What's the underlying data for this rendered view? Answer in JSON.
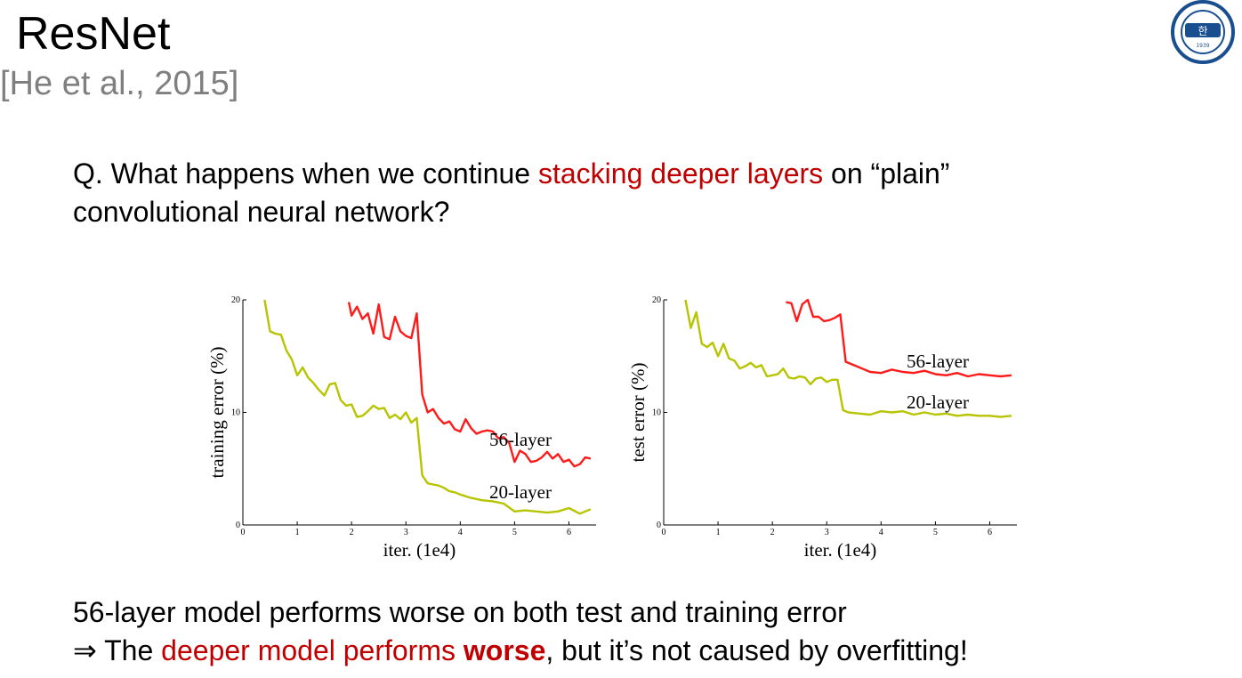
{
  "slide": {
    "title": "ResNet",
    "subtitle": "[He et al., 2015]",
    "question": {
      "prefix": "Q. What happens when we continue ",
      "highlight": "stacking deeper layers",
      "suffix_line1": " on  “plain”",
      "line2": "convolutional neural network?"
    },
    "conclusion": {
      "line1": "56-layer model performs worse on both test and training error",
      "arrow": "⇒",
      "line2_pre": " The ",
      "line2_highlight": "deeper model performs ",
      "line2_bold": "worse",
      "line2_post": ", but it’s not caused by overfitting!"
    }
  },
  "colors": {
    "highlight_red": "#c00000",
    "series_56_layer": "#ff1a1a",
    "series_20_layer": "#b7c400",
    "logo_blue": "#1a4f8f"
  },
  "logo": {
    "icon": "university-seal-logo",
    "text": "HANYANG UNIVERSITY 1939",
    "glyph": "한"
  },
  "chart_data": [
    {
      "type": "line",
      "xlabel": "iter. (1e4)",
      "ylabel": "training error (%)",
      "xlim": [
        0,
        6.5
      ],
      "ylim": [
        0,
        20
      ],
      "xticks": [
        0,
        1,
        2,
        3,
        4,
        5,
        6
      ],
      "yticks": [
        0,
        10,
        20
      ],
      "series": [
        {
          "name": "56-layer",
          "x": [
            1.95,
            2.0,
            2.1,
            2.2,
            2.3,
            2.4,
            2.5,
            2.6,
            2.7,
            2.8,
            2.9,
            3.0,
            3.1,
            3.2,
            3.3,
            3.4,
            3.5,
            3.6,
            3.7,
            3.8,
            3.9,
            4.0,
            4.1,
            4.2,
            4.3,
            4.4,
            4.5,
            4.6,
            4.7,
            4.8,
            4.9,
            5.0,
            5.1,
            5.2,
            5.3,
            5.4,
            5.5,
            5.6,
            5.7,
            5.8,
            5.9,
            6.0,
            6.1,
            6.2,
            6.3,
            6.4
          ],
          "y": [
            19.8,
            18.6,
            19.4,
            18.3,
            18.8,
            17.0,
            19.6,
            16.7,
            16.5,
            18.5,
            17.2,
            16.8,
            16.6,
            18.8,
            11.6,
            10.0,
            10.3,
            9.5,
            9.0,
            9.2,
            8.5,
            8.3,
            9.4,
            8.6,
            8.1,
            8.3,
            8.4,
            8.3,
            7.7,
            7.8,
            7.3,
            5.6,
            6.6,
            6.3,
            5.6,
            5.7,
            6.0,
            6.5,
            5.9,
            6.3,
            5.6,
            5.8,
            5.2,
            5.4,
            6.0,
            5.9
          ]
        },
        {
          "name": "20-layer",
          "x": [
            0.4,
            0.5,
            0.6,
            0.7,
            0.8,
            0.9,
            1.0,
            1.1,
            1.2,
            1.3,
            1.4,
            1.5,
            1.6,
            1.7,
            1.8,
            1.9,
            2.0,
            2.1,
            2.2,
            2.3,
            2.4,
            2.5,
            2.6,
            2.7,
            2.8,
            2.9,
            3.0,
            3.1,
            3.2,
            3.3,
            3.4,
            3.5,
            3.6,
            3.7,
            3.8,
            3.9,
            4.0,
            4.2,
            4.4,
            4.6,
            4.8,
            5.0,
            5.2,
            5.4,
            5.6,
            5.8,
            6.0,
            6.2,
            6.4
          ],
          "y": [
            20.0,
            17.2,
            17.0,
            16.9,
            15.5,
            14.7,
            13.3,
            14.0,
            13.1,
            12.6,
            12.0,
            11.5,
            12.5,
            12.6,
            11.1,
            10.6,
            10.7,
            9.6,
            9.7,
            10.1,
            10.6,
            10.3,
            10.4,
            9.5,
            9.8,
            9.4,
            10.0,
            9.1,
            9.5,
            4.4,
            3.7,
            3.6,
            3.5,
            3.3,
            3.0,
            2.9,
            2.7,
            2.4,
            2.2,
            2.1,
            1.9,
            1.2,
            1.3,
            1.2,
            1.1,
            1.2,
            1.5,
            1.0,
            1.4
          ]
        }
      ]
    },
    {
      "type": "line",
      "xlabel": "iter. (1e4)",
      "ylabel": "test error (%)",
      "xlim": [
        0,
        6.5
      ],
      "ylim": [
        0,
        20
      ],
      "xticks": [
        0,
        1,
        2,
        3,
        4,
        5,
        6
      ],
      "yticks": [
        0,
        10,
        20
      ],
      "series": [
        {
          "name": "56-layer",
          "x": [
            2.25,
            2.35,
            2.45,
            2.55,
            2.65,
            2.75,
            2.85,
            2.95,
            3.05,
            3.15,
            3.25,
            3.35,
            3.5,
            3.65,
            3.8,
            4.0,
            4.2,
            4.4,
            4.6,
            4.8,
            5.0,
            5.2,
            5.4,
            5.6,
            5.8,
            6.0,
            6.2,
            6.4
          ],
          "y": [
            19.8,
            19.7,
            18.1,
            19.6,
            20.0,
            18.5,
            18.5,
            18.1,
            18.2,
            18.4,
            18.7,
            14.5,
            14.2,
            13.9,
            13.6,
            13.5,
            13.8,
            13.6,
            13.5,
            13.7,
            13.4,
            13.3,
            13.5,
            13.2,
            13.4,
            13.3,
            13.2,
            13.3
          ]
        },
        {
          "name": "20-layer",
          "x": [
            0.4,
            0.5,
            0.6,
            0.7,
            0.8,
            0.9,
            1.0,
            1.1,
            1.2,
            1.3,
            1.4,
            1.5,
            1.6,
            1.7,
            1.8,
            1.9,
            2.0,
            2.1,
            2.2,
            2.3,
            2.4,
            2.5,
            2.6,
            2.7,
            2.8,
            2.9,
            3.0,
            3.1,
            3.2,
            3.3,
            3.4,
            3.6,
            3.8,
            4.0,
            4.2,
            4.4,
            4.6,
            4.8,
            5.0,
            5.2,
            5.4,
            5.6,
            5.8,
            6.0,
            6.2,
            6.4
          ],
          "y": [
            20.0,
            17.5,
            18.9,
            16.1,
            15.8,
            16.2,
            15.0,
            16.1,
            14.8,
            14.6,
            13.9,
            14.1,
            14.4,
            14.0,
            14.2,
            13.2,
            13.3,
            13.4,
            13.9,
            13.1,
            13.0,
            13.2,
            13.1,
            12.5,
            13.0,
            13.1,
            12.7,
            12.9,
            12.9,
            10.2,
            10.0,
            9.9,
            9.8,
            10.1,
            10.0,
            10.1,
            9.8,
            10.0,
            9.8,
            9.9,
            9.7,
            9.8,
            9.7,
            9.7,
            9.6,
            9.7
          ]
        }
      ]
    }
  ]
}
